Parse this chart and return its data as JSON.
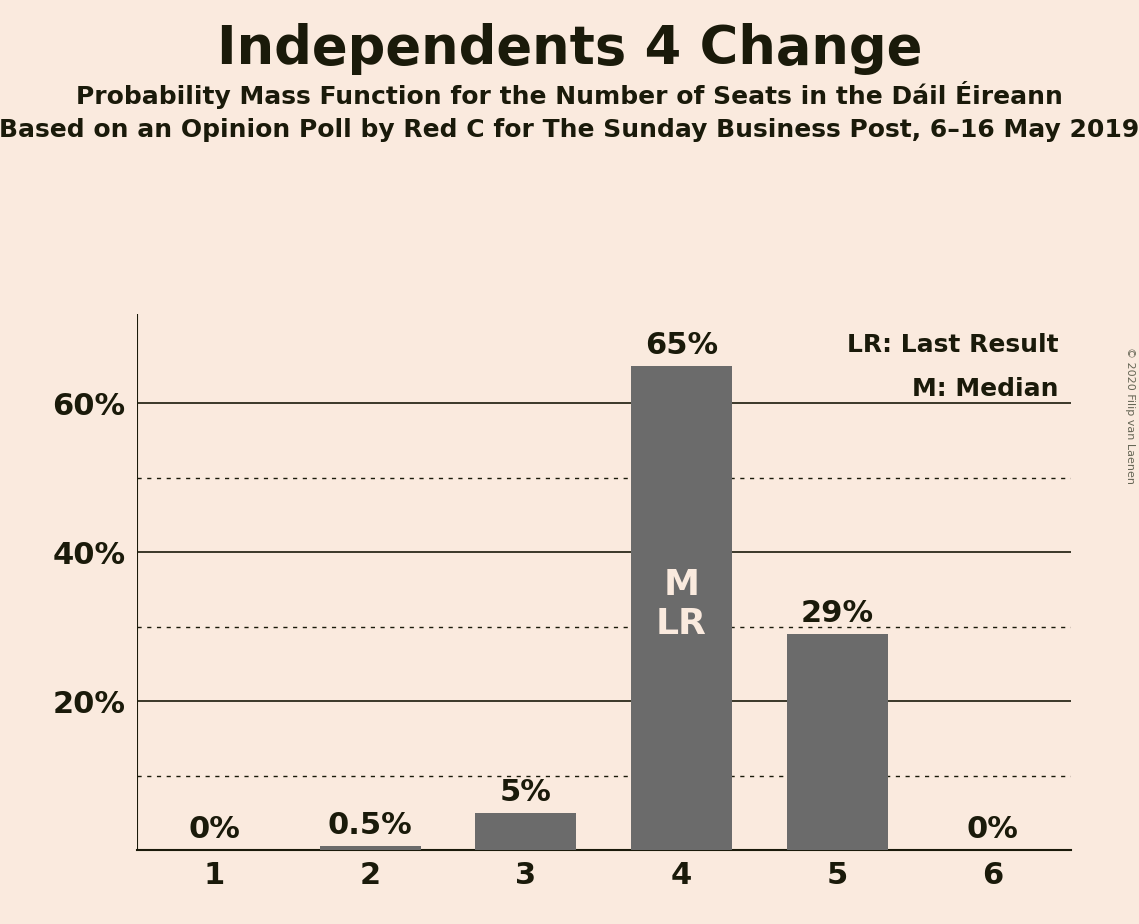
{
  "title": "Independents 4 Change",
  "subtitle1": "Probability Mass Function for the Number of Seats in the Dáil Éireann",
  "subtitle2": "Based on an Opinion Poll by Red C for The Sunday Business Post, 6–16 May 2019",
  "categories": [
    1,
    2,
    3,
    4,
    5,
    6
  ],
  "values": [
    0.0,
    0.5,
    5.0,
    65.0,
    29.0,
    0.0
  ],
  "bar_color": "#6b6b6b",
  "background_color": "#faeade",
  "title_color": "#1a1a0a",
  "label_color": "#1a1a0a",
  "bar_label_outside_color": "#1a1a0a",
  "bar_label_inside_color": "#faeade",
  "ylim": [
    0,
    72
  ],
  "ylabel_ticks": [
    20,
    40,
    60
  ],
  "dotted_ticks": [
    10,
    30,
    50
  ],
  "solid_ticks": [
    20,
    40,
    60
  ],
  "legend_text1": "LR: Last Result",
  "legend_text2": "M: Median",
  "copyright_text": "© 2020 Filip van Laenen",
  "bar_width": 0.65,
  "title_fontsize": 38,
  "subtitle_fontsize": 18,
  "tick_fontsize": 22,
  "label_fontsize": 22,
  "bar_label_fontsize": 22,
  "inside_label_fontsize": 26,
  "legend_fontsize": 18
}
